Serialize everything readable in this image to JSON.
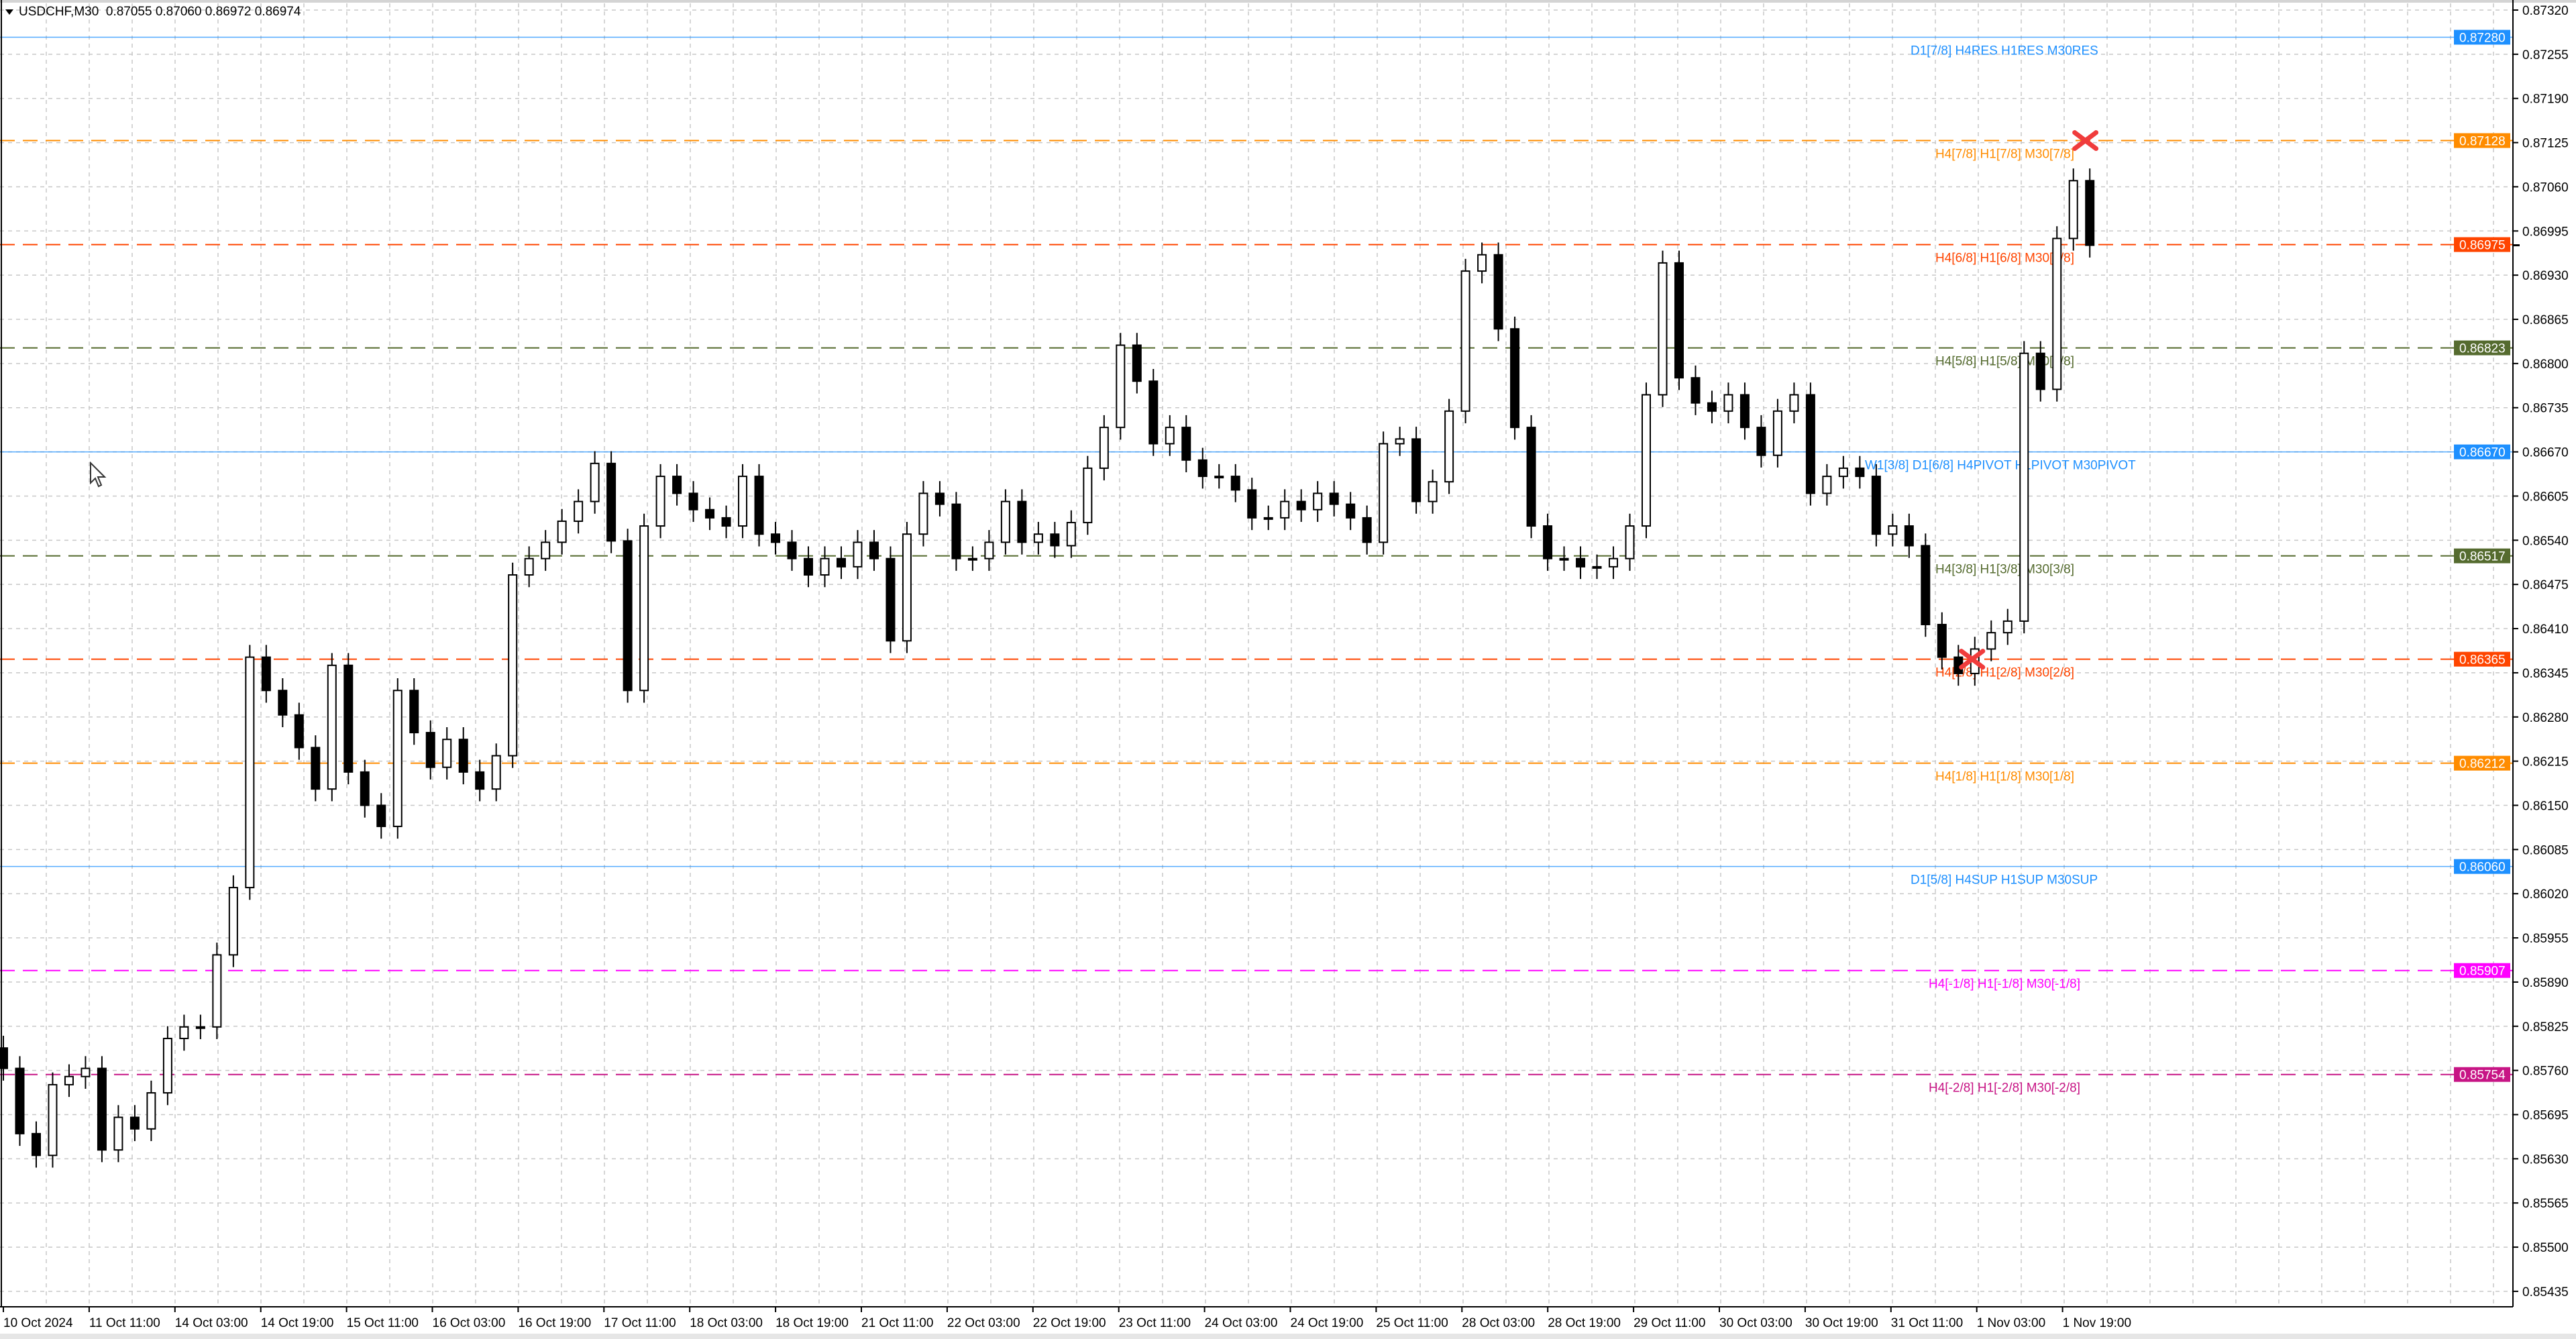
{
  "header": {
    "symbol": "USDCHF,M30",
    "ohlc": "0.87055 0.87060 0.86972 0.86974"
  },
  "colors": {
    "background": "#ffffff",
    "candle": "#000000",
    "grid": "#c0c0c0",
    "res_sup_blue": "#1e90ff",
    "orange": "#ff8c00",
    "orangered": "#ff4500",
    "olive": "#556b2f",
    "magenta": "#ff00ff",
    "violet_red": "#c71585",
    "marker_red": "#f03c3c"
  },
  "chart_data": {
    "type": "candlestick",
    "symbol": "USDCHF",
    "timeframe": "M30",
    "ylim": [
      0.85435,
      0.8732
    ],
    "grid": true,
    "y_ticks": [
      "0.87320",
      "0.87255",
      "0.87190",
      "0.87125",
      "0.87060",
      "0.86995",
      "0.86930",
      "0.86865",
      "0.86800",
      "0.86735",
      "0.86670",
      "0.86605",
      "0.86540",
      "0.86475",
      "0.86410",
      "0.86345",
      "0.86280",
      "0.86215",
      "0.86150",
      "0.86085",
      "0.86020",
      "0.85955",
      "0.85890",
      "0.85825",
      "0.85760",
      "0.85695",
      "0.85630",
      "0.85565",
      "0.85500",
      "0.85435"
    ],
    "x_ticks": [
      "10 Oct 2024",
      "11 Oct 11:00",
      "14 Oct 03:00",
      "14 Oct 19:00",
      "15 Oct 11:00",
      "16 Oct 03:00",
      "16 Oct 19:00",
      "17 Oct 11:00",
      "18 Oct 03:00",
      "18 Oct 19:00",
      "21 Oct 11:00",
      "22 Oct 03:00",
      "22 Oct 19:00",
      "23 Oct 11:00",
      "24 Oct 03:00",
      "24 Oct 19:00",
      "25 Oct 11:00",
      "28 Oct 03:00",
      "28 Oct 19:00",
      "29 Oct 11:00",
      "30 Oct 03:00",
      "30 Oct 19:00",
      "31 Oct 11:00",
      "1 Nov 03:00",
      "1 Nov 19:00"
    ],
    "close": [
      0.85763,
      0.85667,
      0.85635,
      0.85739,
      0.85751,
      0.85763,
      0.85643,
      0.85691,
      0.85674,
      0.85727,
      0.85807,
      0.85824,
      0.85824,
      0.8593,
      0.86029,
      0.86368,
      0.86319,
      0.86283,
      0.86235,
      0.86174,
      0.86356,
      0.86199,
      0.8615,
      0.86119,
      0.86319,
      0.86257,
      0.86206,
      0.86247,
      0.86199,
      0.86174,
      0.86223,
      0.86489,
      0.86513,
      0.86537,
      0.86568,
      0.86597,
      0.86653,
      0.86539,
      0.86319,
      0.86561,
      0.86634,
      0.86609,
      0.86585,
      0.86573,
      0.86561,
      0.86634,
      0.86549,
      0.86537,
      0.86513,
      0.86489,
      0.86513,
      0.86501,
      0.86537,
      0.86513,
      0.86392,
      0.86549,
      0.86609,
      0.86593,
      0.86513,
      0.86513,
      0.86537,
      0.86597,
      0.86537,
      0.86549,
      0.86532,
      0.86566,
      0.86646,
      0.86706,
      0.86827,
      0.86774,
      0.86682,
      0.86706,
      0.86658,
      0.86634,
      0.86634,
      0.86614,
      0.86573,
      0.86573,
      0.86597,
      0.86585,
      0.86609,
      0.86593,
      0.86573,
      0.86537,
      0.86682,
      0.86689,
      0.86597,
      0.86626,
      0.8673,
      0.86936,
      0.8696,
      0.86851,
      0.86706,
      0.86561,
      0.86513,
      0.86513,
      0.86501,
      0.86501,
      0.86513,
      0.86561,
      0.86754,
      0.86948,
      0.86779,
      0.86742,
      0.8673,
      0.86754,
      0.86706,
      0.86665,
      0.8673,
      0.86754,
      0.86609,
      0.86634,
      0.86646,
      0.86634,
      0.86549,
      0.86561,
      0.86532,
      0.86416,
      0.86368,
      0.86344,
      0.8638,
      0.86404,
      0.86421,
      0.86815,
      0.86762,
      0.86984,
      0.87069,
      0.86974
    ],
    "current_price": 0.86974,
    "levels": [
      {
        "price": 0.8728,
        "price_label": "0.87280",
        "label": "D1[7/8] H4RES H1RES M30RES",
        "color": "#1e90ff",
        "style": "solid"
      },
      {
        "price": 0.87128,
        "price_label": "0.87128",
        "label": "H4[7/8] H1[7/8] M30[7/8]",
        "color": "#ff8c00",
        "style": "dashed"
      },
      {
        "price": 0.86975,
        "price_label": "0.86975",
        "label": "H4[6/8] H1[6/8] M30[6/8]",
        "color": "#ff4500",
        "style": "dashed"
      },
      {
        "price": 0.86823,
        "price_label": "0.86823",
        "label": "H4[5/8] H1[5/8] M30[5/8]",
        "color": "#556b2f",
        "style": "dashed"
      },
      {
        "price": 0.8667,
        "price_label": "0.86670",
        "label": "W1[3/8] D1[6/8] H4PIVOT H1PIVOT M30PIVOT",
        "color": "#1e90ff",
        "style": "solid"
      },
      {
        "price": 0.86517,
        "price_label": "0.86517",
        "label": "H4[3/8] H1[3/8] M30[3/8]",
        "color": "#556b2f",
        "style": "dashed"
      },
      {
        "price": 0.86365,
        "price_label": "0.86365",
        "label": "H4[2/8] H1[2/8] M30[2/8]",
        "color": "#ff4500",
        "style": "dashed"
      },
      {
        "price": 0.86212,
        "price_label": "0.86212",
        "label": "H4[1/8] H1[1/8] M30[1/8]",
        "color": "#ff8c00",
        "style": "dashed"
      },
      {
        "price": 0.8606,
        "price_label": "0.86060",
        "label": "D1[5/8] H4SUP H1SUP M30SUP",
        "color": "#1e90ff",
        "style": "solid"
      },
      {
        "price": 0.85907,
        "price_label": "0.85907",
        "label": "H4[-1/8] H1[-1/8] M30[-1/8]",
        "color": "#ff00ff",
        "style": "dashed"
      },
      {
        "price": 0.85754,
        "price_label": "0.85754",
        "label": "H4[-2/8] H1[-2/8] M30[-2/8]",
        "color": "#c71585",
        "style": "dashed"
      }
    ],
    "markers": [
      {
        "icon": "cross-marker-icon",
        "price": 0.87128,
        "at_time": "1 Nov 19:00",
        "color": "#f03c3c"
      },
      {
        "icon": "cross-marker-icon",
        "price": 0.86365,
        "at_time": "31 Oct 11:00",
        "color": "#f03c3c"
      }
    ]
  }
}
